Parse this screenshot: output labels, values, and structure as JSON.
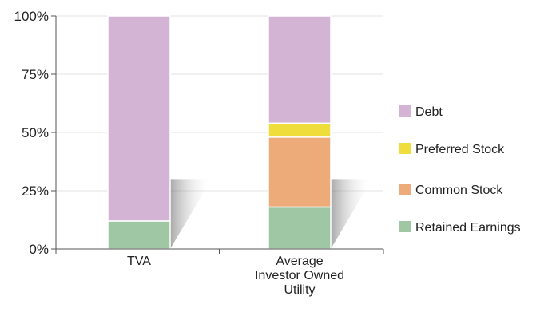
{
  "chart_data": {
    "type": "bar",
    "stacked": true,
    "categories": [
      "TVA",
      "Average Investor Owned Utility"
    ],
    "category_label_lines": [
      [
        "TVA"
      ],
      [
        "Average",
        "Investor Owned",
        "Utility"
      ]
    ],
    "series": [
      {
        "name": "Retained Earnings",
        "values": [
          12,
          18
        ],
        "color": "#9fc7a4"
      },
      {
        "name": "Common Stock",
        "values": [
          0,
          30
        ],
        "color": "#eeab7a"
      },
      {
        "name": "Preferred Stock",
        "values": [
          0,
          6
        ],
        "color": "#eedd3a"
      },
      {
        "name": "Debt",
        "values": [
          88,
          46
        ],
        "color": "#d4b4d4"
      }
    ],
    "legend_order": [
      "Debt",
      "Preferred Stock",
      "Common Stock",
      "Retained Earnings"
    ],
    "legend_position": "right",
    "ylim": [
      0,
      100
    ],
    "yticks": [
      0,
      25,
      50,
      75,
      100
    ],
    "ytick_labels": [
      "0%",
      "25%",
      "50%",
      "75%",
      "100%"
    ],
    "grid": true,
    "title": "",
    "xlabel": "",
    "ylabel": ""
  }
}
